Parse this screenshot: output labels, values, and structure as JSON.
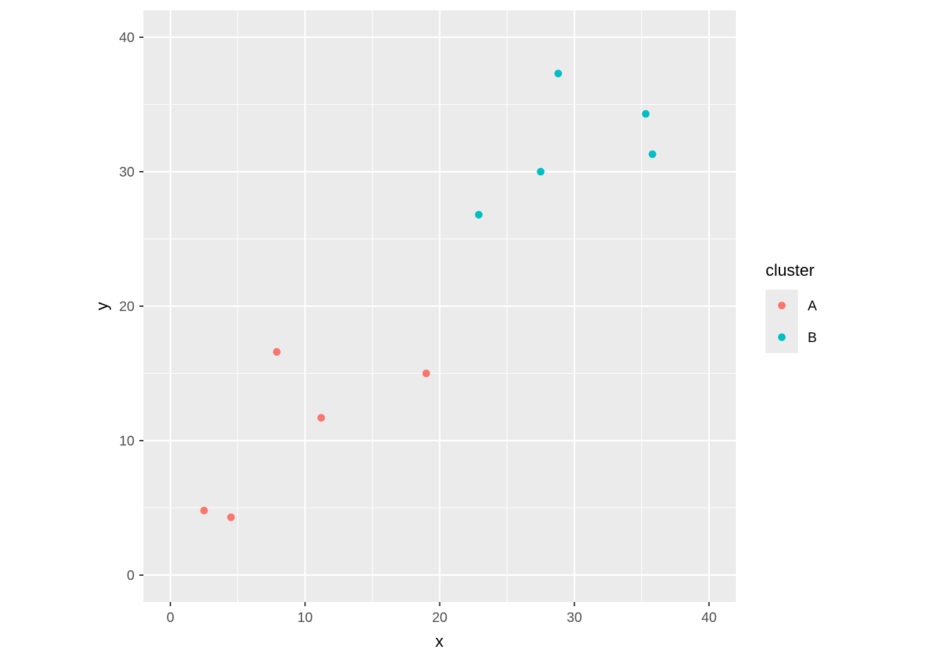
{
  "chart_data": {
    "type": "scatter",
    "title": "",
    "xlabel": "x",
    "ylabel": "y",
    "xlim": [
      -2,
      42
    ],
    "ylim": [
      -2,
      42
    ],
    "x_ticks": [
      0,
      10,
      20,
      30,
      40
    ],
    "y_ticks": [
      0,
      10,
      20,
      30,
      40
    ],
    "x_tick_labels": [
      "0",
      "10",
      "20",
      "30",
      "40"
    ],
    "y_tick_labels": [
      "0",
      "10",
      "20",
      "30",
      "40"
    ],
    "grid": true,
    "legend": {
      "title": "cluster",
      "position": "right"
    },
    "series": [
      {
        "name": "A",
        "color": "#F8766D",
        "points": [
          {
            "x": 2.5,
            "y": 4.8
          },
          {
            "x": 4.5,
            "y": 4.3
          },
          {
            "x": 7.9,
            "y": 16.6
          },
          {
            "x": 11.2,
            "y": 11.7
          },
          {
            "x": 19.0,
            "y": 15.0
          }
        ]
      },
      {
        "name": "B",
        "color": "#00BFC4",
        "points": [
          {
            "x": 22.9,
            "y": 26.8
          },
          {
            "x": 27.5,
            "y": 30.0
          },
          {
            "x": 28.8,
            "y": 37.3
          },
          {
            "x": 35.3,
            "y": 34.3
          },
          {
            "x": 35.8,
            "y": 31.3
          }
        ]
      }
    ]
  }
}
